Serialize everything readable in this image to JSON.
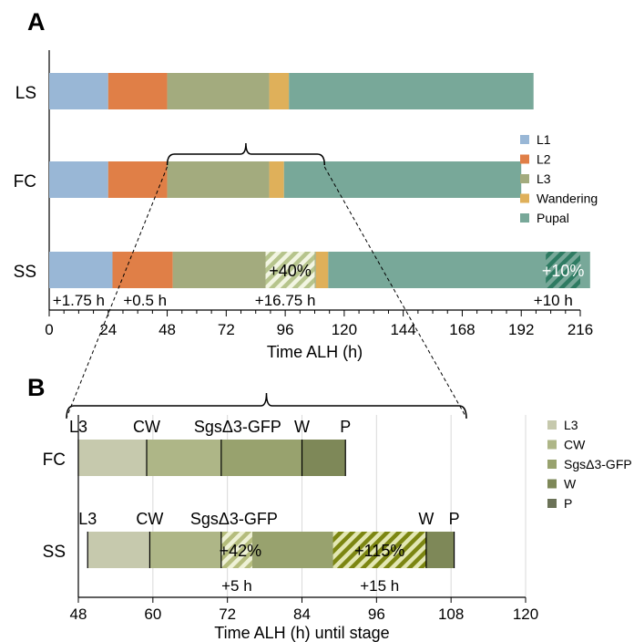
{
  "colors": {
    "L1": "#99b7d6",
    "L2": "#e07f47",
    "L3": "#a3ab7e",
    "Wandering": "#dfb05a",
    "Pupal": "#78a899",
    "B_L3": "#c6c9ad",
    "B_CW": "#aeb687",
    "B_Sgs": "#98a26e",
    "B_W": "#7e8858",
    "B_P": "#6b7257",
    "stripeA": "#d6e3b0",
    "stripeAP": "#2e7b62",
    "stripeB1": "#d8dfa6",
    "stripeB2": "#8e9a18"
  },
  "panels": [
    {
      "letter": "A"
    },
    {
      "letter": "B"
    }
  ],
  "chart_data": [
    {
      "type": "bar",
      "orientation": "horizontal",
      "stacked": true,
      "panel": "A",
      "xlabel": "Time ALH (h)",
      "xlim": [
        0,
        216
      ],
      "xticks": [
        0,
        24,
        48,
        72,
        96,
        120,
        144,
        168,
        192,
        216
      ],
      "categories": [
        "LS",
        "FC",
        "SS"
      ],
      "legend": {
        "position": "right",
        "entries": [
          "L1",
          "L2",
          "L3",
          "Wandering",
          "Pupal"
        ]
      },
      "series": [
        {
          "name": "L1",
          "values": [
            24,
            24,
            25.75
          ]
        },
        {
          "name": "L2",
          "values": [
            24,
            24,
            24.5
          ]
        },
        {
          "name": "L3",
          "values": [
            41.5,
            41.5,
            58.25
          ]
        },
        {
          "name": "Wandering",
          "values": [
            8,
            6,
            5
          ]
        },
        {
          "name": "Pupal",
          "values": [
            99.5,
            96.5,
            106.5
          ]
        }
      ],
      "hatched_extensions": [
        {
          "row": "SS",
          "start": 88,
          "end": 108,
          "label": "+40%"
        },
        {
          "row": "SS",
          "start": 202,
          "end": 216,
          "label": "+10%"
        }
      ],
      "delay_labels": [
        {
          "text": "+1.75 h",
          "x": 12
        },
        {
          "text": "+0.5 h",
          "x": 39
        },
        {
          "text": "+16.75 h",
          "x": 96
        },
        {
          "text": "+10 h",
          "x": 205
        }
      ],
      "brace": {
        "row": "FC",
        "from": 48,
        "to": 112
      }
    },
    {
      "type": "bar",
      "orientation": "horizontal",
      "stacked": true,
      "panel": "B",
      "xlabel": "Time ALH (h) until stage",
      "xlim": [
        48,
        120
      ],
      "xticks": [
        48,
        60,
        72,
        84,
        96,
        108,
        120
      ],
      "categories": [
        "FC",
        "SS"
      ],
      "legend": {
        "position": "right",
        "entries": [
          "L3",
          "CW",
          "SgsΔ3-GFP",
          "W",
          "P"
        ]
      },
      "segments": [
        {
          "row": "FC",
          "name": "L3",
          "start": 48,
          "end": 59
        },
        {
          "row": "FC",
          "name": "CW",
          "start": 59,
          "end": 71
        },
        {
          "row": "FC",
          "name": "SgsΔ3-GFP",
          "start": 71,
          "end": 84
        },
        {
          "row": "FC",
          "name": "W",
          "start": 84,
          "end": 91
        },
        {
          "row": "SS",
          "name": "L3",
          "start": 49.5,
          "end": 59.5
        },
        {
          "row": "SS",
          "name": "CW",
          "start": 59.5,
          "end": 76
        },
        {
          "row": "SS",
          "name": "SgsΔ3-GFP",
          "start": 76,
          "end": 104
        },
        {
          "row": "SS",
          "name": "W",
          "start": 104,
          "end": 108.5
        }
      ],
      "stage_marks": [
        {
          "row": "FC",
          "label": "L3",
          "x": 48
        },
        {
          "row": "FC",
          "label": "CW",
          "x": 59
        },
        {
          "row": "FC",
          "label": "SgsΔ3-GFP",
          "x": 71
        },
        {
          "row": "FC",
          "label": "W",
          "x": 84
        },
        {
          "row": "FC",
          "label": "P",
          "x": 91
        },
        {
          "row": "SS",
          "label": "L3",
          "x": 49.5
        },
        {
          "row": "SS",
          "label": "CW",
          "x": 59.5
        },
        {
          "row": "SS",
          "label": "SgsΔ3-GFP",
          "x": 71
        },
        {
          "row": "SS",
          "label": "W",
          "x": 104
        },
        {
          "row": "SS",
          "label": "P",
          "x": 108.5
        }
      ],
      "hatched_extensions": [
        {
          "row": "SS",
          "start": 71,
          "end": 76,
          "label": "+42%"
        },
        {
          "row": "SS",
          "start": 89,
          "end": 104,
          "label": "+115%"
        }
      ],
      "delay_labels": [
        {
          "text": "+5 h",
          "x": 73.5
        },
        {
          "text": "+15 h",
          "x": 96.5
        }
      ],
      "brace": {
        "from": 48,
        "to": 112
      }
    }
  ]
}
